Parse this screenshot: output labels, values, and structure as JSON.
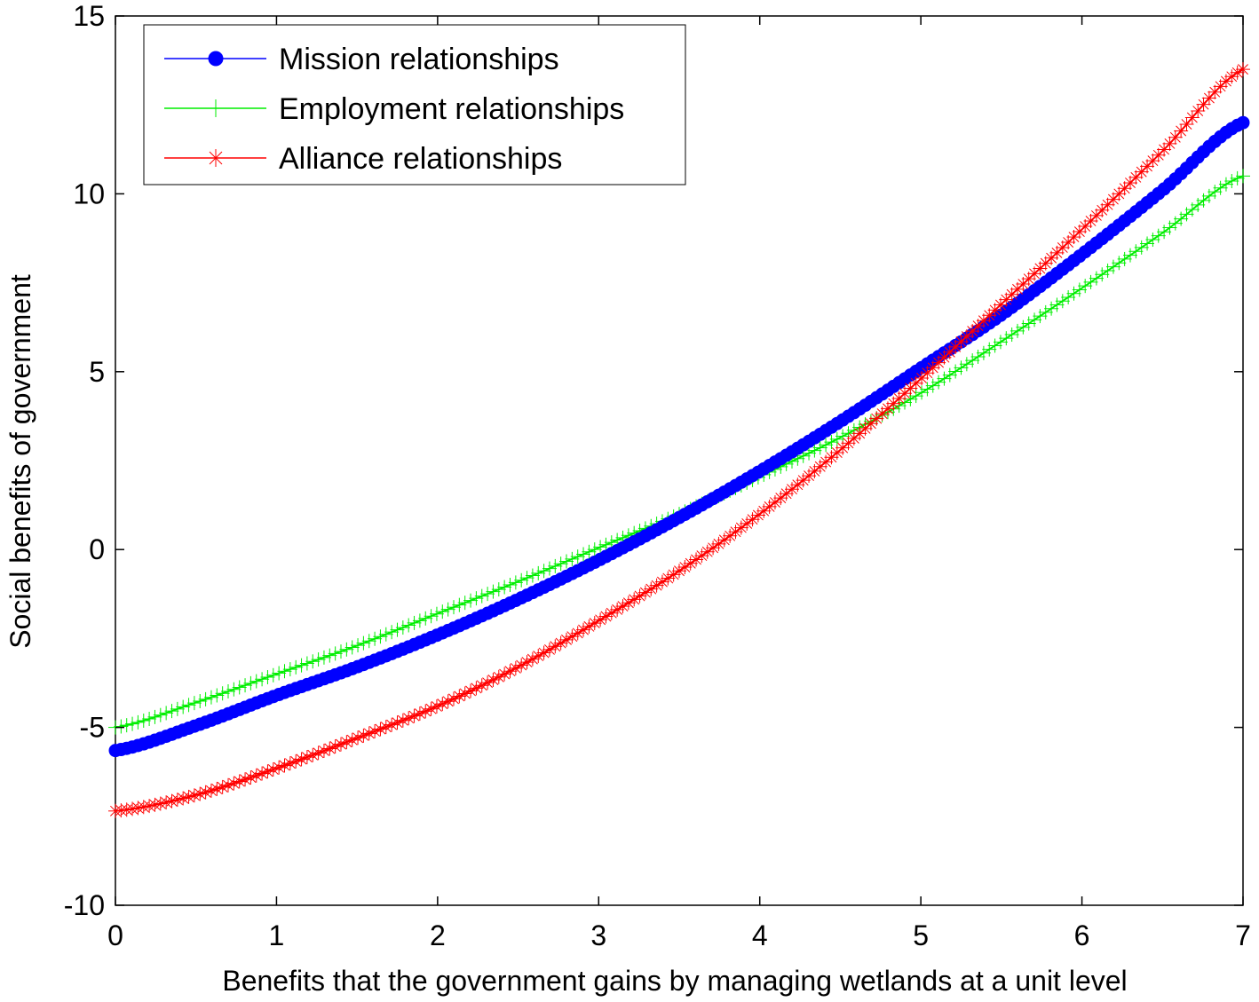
{
  "chart_data": {
    "type": "scatter",
    "title": "",
    "xlabel": "Benefits that the government gains by managing wetlands at a unit level",
    "ylabel": "Social benefits of government",
    "xlim": [
      0,
      7
    ],
    "ylim": [
      -10,
      15
    ],
    "xticks": [
      "0",
      "1",
      "2",
      "3",
      "4",
      "5",
      "6",
      "7"
    ],
    "yticks": [
      "15",
      "10",
      "5",
      "0",
      "-5",
      "-10"
    ],
    "grid": false,
    "legend_position": "top-left",
    "x": [
      0,
      0.5,
      1,
      1.5,
      2,
      2.5,
      3,
      3.5,
      4,
      4.5,
      5,
      5.5,
      6,
      6.5,
      7
    ],
    "series": [
      {
        "name": "Mission relationships",
        "color": "#0000ff",
        "marker": "circle",
        "values": [
          -5.65,
          -4.95,
          -4.1,
          -3.3,
          -2.4,
          -1.4,
          -0.3,
          0.9,
          2.2,
          3.6,
          5.1,
          6.6,
          8.3,
          10.1,
          12.0
        ]
      },
      {
        "name": "Employment relationships",
        "color": "#00ee00",
        "marker": "plus",
        "values": [
          -5.0,
          -4.3,
          -3.5,
          -2.7,
          -1.8,
          -0.9,
          0.05,
          1.0,
          2.05,
          3.15,
          4.4,
          5.85,
          7.35,
          8.9,
          10.5
        ]
      },
      {
        "name": "Alliance relationships",
        "color": "#ff0000",
        "marker": "star",
        "values": [
          -7.35,
          -6.9,
          -6.15,
          -5.3,
          -4.4,
          -3.3,
          -2.0,
          -0.6,
          1.0,
          2.8,
          4.8,
          6.9,
          9.0,
          11.2,
          13.5
        ]
      }
    ]
  }
}
